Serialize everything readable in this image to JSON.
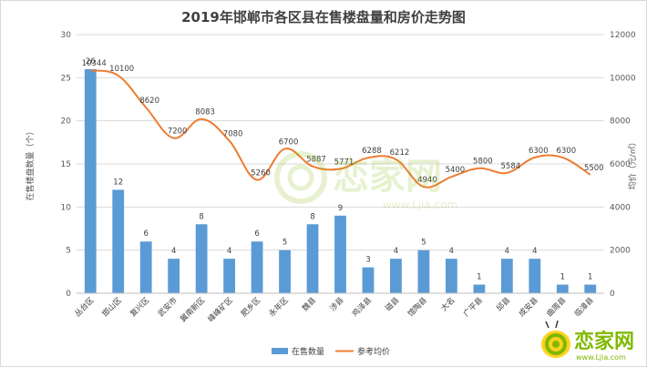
{
  "chart_data": {
    "type": "bar+line",
    "title": "2019年邯郸市各区县在售楼盘量和房价走势图",
    "categories": [
      "丛台区",
      "邯山区",
      "复兴区",
      "武安市",
      "冀南新区",
      "峰峰矿区",
      "肥乡区",
      "永年区",
      "魏县",
      "涉县",
      "鸡泽县",
      "磁县",
      "馆陶县",
      "大名",
      "广平县",
      "邱县",
      "成安县",
      "曲周县",
      "临漳县"
    ],
    "left_axis": {
      "label": "在售楼盘数量（个）",
      "min": 0,
      "max": 30,
      "ticks": [
        "0",
        "5",
        "10",
        "15",
        "20",
        "25",
        "30"
      ]
    },
    "right_axis": {
      "label": "均价（元/㎡）",
      "min": 0,
      "max": 12000,
      "ticks": [
        "0",
        "2000",
        "4000",
        "6000",
        "8000",
        "10000",
        "12000"
      ]
    },
    "series": [
      {
        "name": "在售数量",
        "kind": "bar",
        "color": "#5b9bd5",
        "values": [
          26,
          12,
          6,
          4,
          8,
          4,
          6,
          5,
          8,
          9,
          3,
          4,
          5,
          4,
          1,
          4,
          4,
          1,
          1
        ],
        "labels": [
          "26",
          "12",
          "6",
          "4",
          "8",
          "4",
          "6",
          "5",
          "8",
          "9",
          "3",
          "4",
          "5",
          "4",
          "1",
          "4",
          "4",
          "1",
          "1"
        ]
      },
      {
        "name": "参考均价",
        "kind": "line",
        "color": "#ed7d31",
        "values": [
          10344,
          10100,
          8620,
          7200,
          8083,
          7080,
          5260,
          6700,
          5887,
          5771,
          6288,
          6212,
          4940,
          5400,
          5800,
          5584,
          6300,
          6300,
          5500
        ],
        "labels": [
          "10344",
          "10100",
          "8620",
          "7200",
          "8083",
          "7080",
          "5260",
          "6700",
          "5887",
          "5771",
          "6288",
          "6212",
          "4940",
          "5400",
          "5800",
          "5584",
          "6300",
          "6300",
          "5500"
        ]
      }
    ],
    "legend_position": "bottom",
    "grid": true
  },
  "watermark": {
    "brand": "恋家网",
    "url": "www.Ljia.com"
  },
  "logo": {
    "brand": "恋家网",
    "url": "www.Ljia.com"
  }
}
